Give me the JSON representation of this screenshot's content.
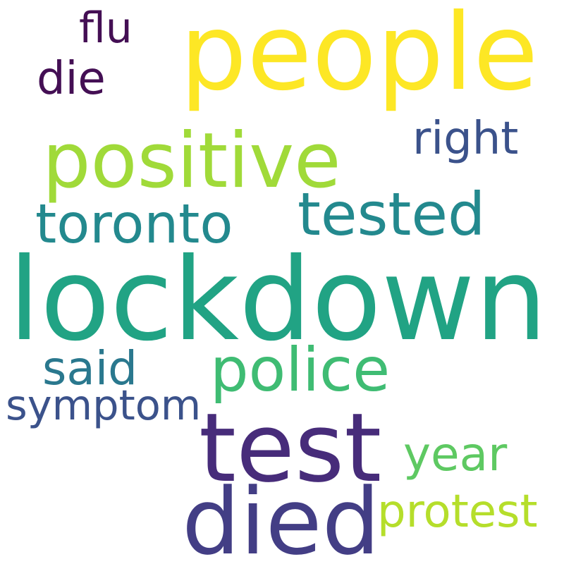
{
  "words": {
    "lockdown": {
      "text": "lockdown",
      "color": "#21a384"
    },
    "people": {
      "text": "people",
      "color": "#fde725"
    },
    "positive": {
      "text": "positive",
      "color": "#a0da39"
    },
    "test": {
      "text": "test",
      "color": "#472c7a"
    },
    "died": {
      "text": "died",
      "color": "#433e85"
    },
    "police": {
      "text": "police",
      "color": "#3fbc73"
    },
    "tested": {
      "text": "tested",
      "color": "#23898e"
    },
    "toronto": {
      "text": "toronto",
      "color": "#23898e"
    },
    "right": {
      "text": "right",
      "color": "#3b528b"
    },
    "protest": {
      "text": "protest",
      "color": "#b5de2b"
    },
    "year": {
      "text": "year",
      "color": "#5ec962"
    },
    "said": {
      "text": "said",
      "color": "#2a788e"
    },
    "symptom": {
      "text": "symptom",
      "color": "#3b528b"
    },
    "die": {
      "text": "die",
      "color": "#440f54"
    },
    "flu": {
      "text": "flu",
      "color": "#440f54"
    }
  }
}
